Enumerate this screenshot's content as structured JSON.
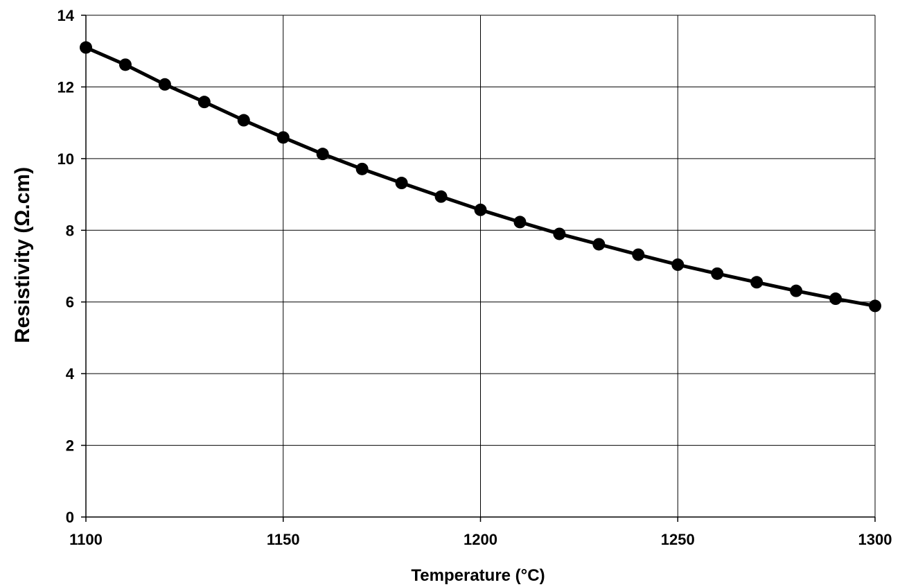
{
  "chart_data": {
    "type": "line",
    "title": "",
    "xlabel": "Temperature (°C)",
    "ylabel": "Resistivity (Ω.cm)",
    "xlim": [
      1100,
      1300
    ],
    "ylim": [
      0,
      14
    ],
    "xticks": [
      1100,
      1150,
      1200,
      1250,
      1300
    ],
    "yticks": [
      0,
      2,
      4,
      6,
      8,
      10,
      12,
      14
    ],
    "xtick_labels": [
      "1100",
      "1150",
      "1200",
      "1250",
      "1300"
    ],
    "ytick_labels": [
      "0",
      "2",
      "4",
      "6",
      "8",
      "10",
      "12",
      "14"
    ],
    "grid": true,
    "legend": "none",
    "colors": {
      "line": "#000000",
      "marker": "#000000",
      "grid": "#000000"
    },
    "series": [
      {
        "x": [
          1100,
          1110,
          1120,
          1130,
          1140,
          1150,
          1160,
          1170,
          1180,
          1190,
          1200,
          1210,
          1220,
          1230,
          1240,
          1250,
          1260,
          1270,
          1280,
          1290,
          1300
        ],
        "y": [
          13.1,
          12.62,
          12.07,
          11.58,
          11.07,
          10.59,
          10.13,
          9.71,
          9.32,
          8.94,
          8.57,
          8.23,
          7.9,
          7.61,
          7.32,
          7.04,
          6.79,
          6.55,
          6.31,
          6.09,
          5.89
        ],
        "marker": "circle"
      }
    ]
  }
}
